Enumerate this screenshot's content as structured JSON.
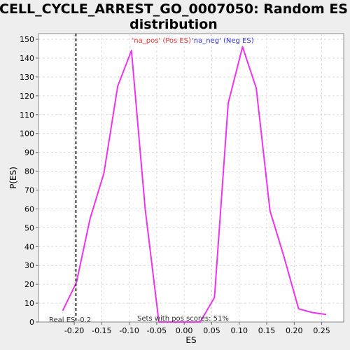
{
  "chart_data": {
    "type": "line",
    "title": "CELL_CYCLE_ARREST_GO_0007050: Random ES distribution",
    "title_lines": [
      "CELL_CYCLE_ARREST_GO_0007050: Random ES",
      "distribution"
    ],
    "xlabel": "ES",
    "ylabel": "P(ES)",
    "xlim": [
      -0.265,
      0.29
    ],
    "ylim": [
      0,
      153
    ],
    "x_ticks": [
      -0.2,
      -0.15,
      -0.1,
      -0.05,
      0.0,
      0.05,
      0.1,
      0.15,
      0.2,
      0.25
    ],
    "x_tick_labels": [
      "-0.20",
      "-0.15",
      "-0.10",
      "-0.05",
      "0.00",
      "0.05",
      "0.10",
      "0.15",
      "0.20",
      "0.25"
    ],
    "y_ticks": [
      0,
      10,
      20,
      30,
      40,
      50,
      60,
      70,
      80,
      90,
      100,
      110,
      120,
      130,
      140,
      150
    ],
    "grid": true,
    "series": [
      {
        "color": "#ee33ee",
        "x": [
          -0.221,
          -0.196,
          -0.171,
          -0.146,
          -0.121,
          -0.096,
          -0.071,
          -0.046,
          -0.021,
          0.004,
          0.029,
          0.055,
          0.08,
          0.106,
          0.131,
          0.156,
          0.181,
          0.208,
          0.233,
          0.258
        ],
        "y": [
          6,
          21,
          55,
          79,
          125,
          144,
          60,
          0,
          0,
          0,
          0,
          13,
          116,
          146,
          124,
          59,
          35,
          7,
          5,
          4
        ]
      }
    ],
    "legend": [
      {
        "label": "'na_pos' (Pos ES)",
        "color": "#ee3333"
      },
      {
        "label": "'na_neg' (Neg ES)",
        "color": "#3333ee"
      }
    ],
    "legend_position": "top-center",
    "real_es": {
      "x": -0.197,
      "label": "Real ES -0.2"
    },
    "annotation": "Sets with pos scores: 51%"
  }
}
